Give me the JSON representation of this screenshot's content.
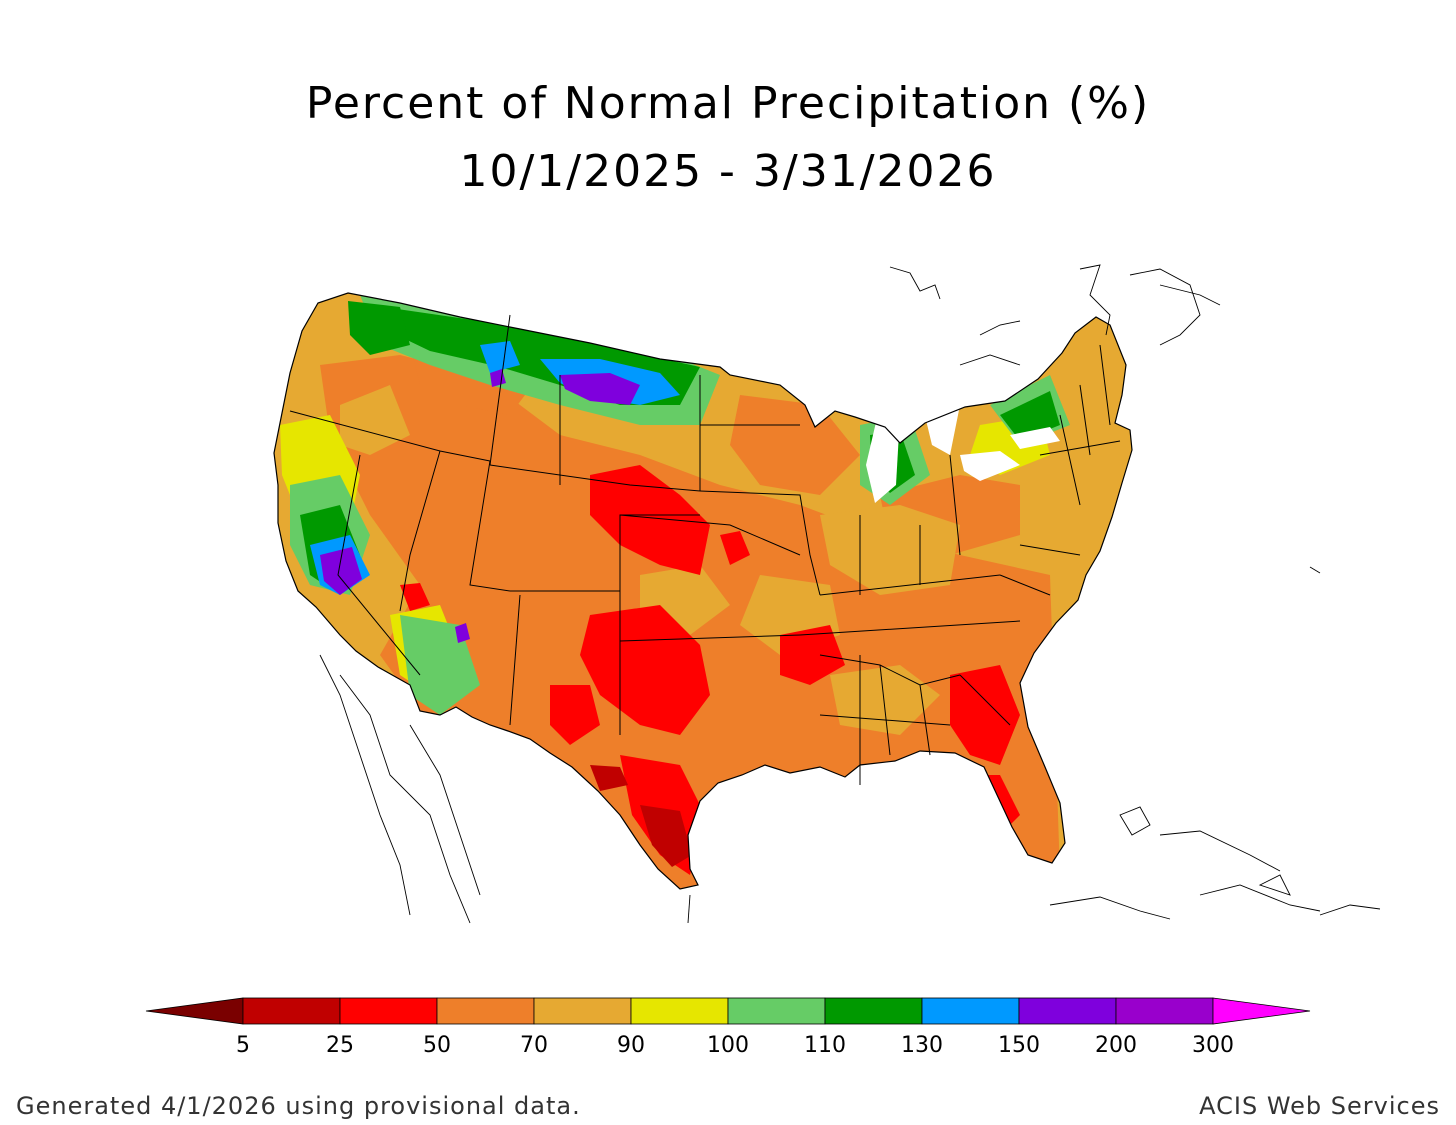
{
  "title": {
    "line1": "Percent of Normal Precipitation (%)",
    "line2": "10/1/2025 - 3/31/2026"
  },
  "legend": {
    "thresholds": [
      "5",
      "25",
      "50",
      "70",
      "90",
      "100",
      "110",
      "130",
      "150",
      "200",
      "300"
    ],
    "colors": [
      "#7a0000",
      "#c00000",
      "#ff0000",
      "#ee7f2a",
      "#e6a932",
      "#e6e600",
      "#66cc66",
      "#009900",
      "#0099ff",
      "#7f00dd",
      "#9900cc",
      "#ff00ff"
    ]
  },
  "map": {
    "region": "contiguous-united-states",
    "dominant_category": "50-90 percent (orange)",
    "wet_regions": [
      "northern-rockies",
      "pacific-northwest",
      "central-california",
      "northern-michigan"
    ],
    "dry_regions": [
      "southern-plains",
      "texas",
      "southeast"
    ]
  },
  "footer": {
    "left": "Generated 4/1/2026 using provisional data.",
    "right": "ACIS Web Services"
  }
}
